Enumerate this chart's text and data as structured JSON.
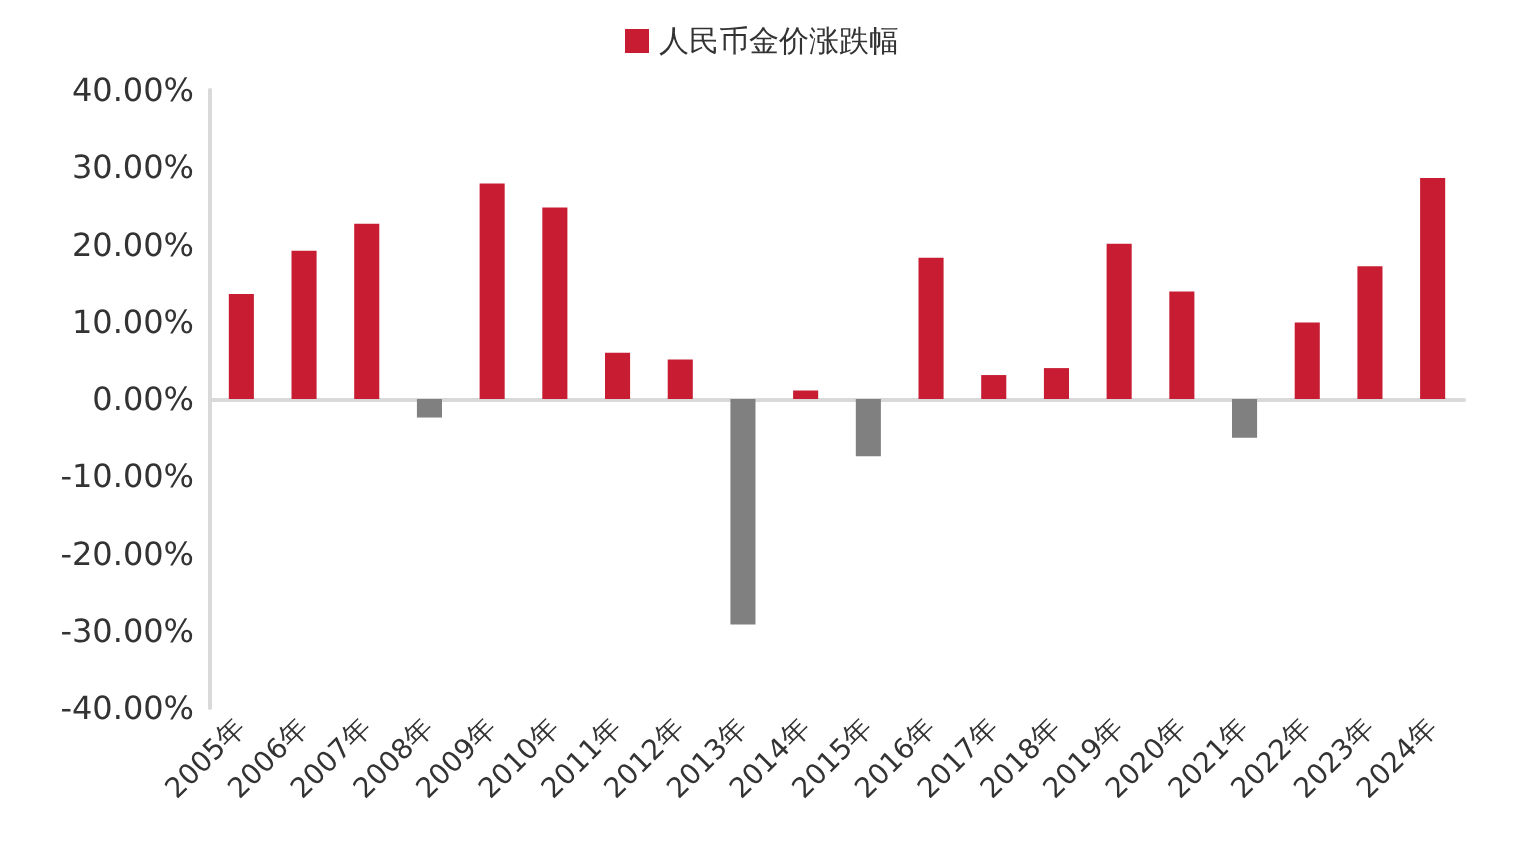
{
  "chart_data": {
    "type": "bar",
    "categories": [
      "2005年",
      "2006年",
      "2007年",
      "2008年",
      "2009年",
      "2010年",
      "2011年",
      "2012年",
      "2013年",
      "2014年",
      "2015年",
      "2016年",
      "2017年",
      "2018年",
      "2019年",
      "2020年",
      "2021年",
      "2022年",
      "2023年",
      "2024年"
    ],
    "series": [
      {
        "name": "人民币金价涨跌幅",
        "color": "#c81c32",
        "values": [
          13.6,
          19.2,
          22.7,
          -2.4,
          27.9,
          24.8,
          6.0,
          5.1,
          -29.2,
          1.1,
          -7.4,
          18.3,
          3.1,
          4.0,
          20.1,
          13.9,
          -5.0,
          9.9,
          17.2,
          28.6
        ],
        "colors": [
          "#c81c32",
          "#c81c32",
          "#c81c32",
          "#808080",
          "#c81c32",
          "#c81c32",
          "#c81c32",
          "#c81c32",
          "#808080",
          "#c81c32",
          "#808080",
          "#c81c32",
          "#c81c32",
          "#c81c32",
          "#c81c32",
          "#c81c32",
          "#808080",
          "#c81c32",
          "#c81c32",
          "#c81c32"
        ]
      }
    ],
    "ylim": [
      -40,
      40
    ],
    "yticks": [
      {
        "value": -40,
        "label": "-40.00%"
      },
      {
        "value": -30,
        "label": "-30.00%"
      },
      {
        "value": -20,
        "label": "-20.00%"
      },
      {
        "value": -10,
        "label": "-10.00%"
      },
      {
        "value": 0,
        "label": "0.00%"
      },
      {
        "value": 10,
        "label": "10.00%"
      },
      {
        "value": 20,
        "label": "20.00%"
      },
      {
        "value": 30,
        "label": "30.00%"
      },
      {
        "value": 40,
        "label": "40.00%"
      }
    ],
    "legend": "top"
  }
}
